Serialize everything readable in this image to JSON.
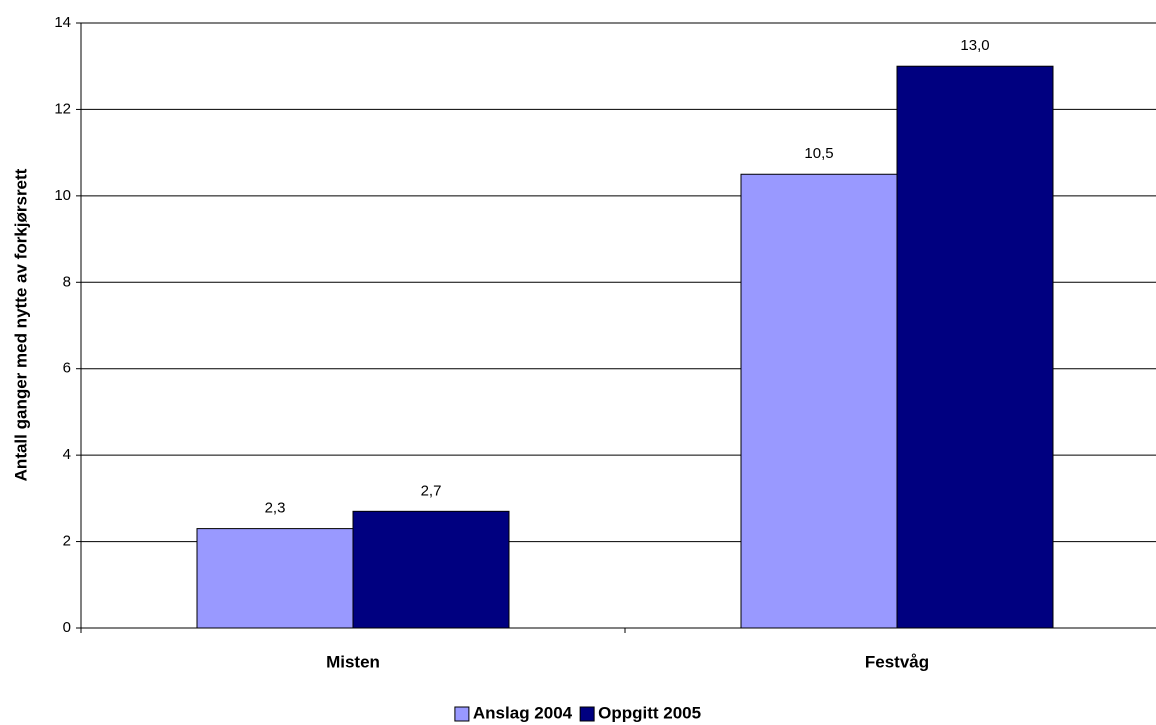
{
  "chart_data": {
    "type": "bar",
    "y_label": "Antall ganger med nytte av forkjørsrett",
    "categories": [
      "Misten",
      "Festvåg"
    ],
    "series": [
      {
        "name": "Anslag 2004",
        "color": "#9999ff",
        "values": [
          2.3,
          10.5
        ],
        "value_labels": [
          "2,3",
          "10,5"
        ]
      },
      {
        "name": "Oppgitt 2005",
        "color": "#000080",
        "values": [
          2.7,
          13.0
        ],
        "value_labels": [
          "2,7",
          "13,0"
        ]
      }
    ],
    "ylim": [
      0,
      14
    ],
    "yticks": [
      0,
      2,
      4,
      6,
      8,
      10,
      12,
      14
    ],
    "grid": true,
    "legend": "bottom"
  }
}
